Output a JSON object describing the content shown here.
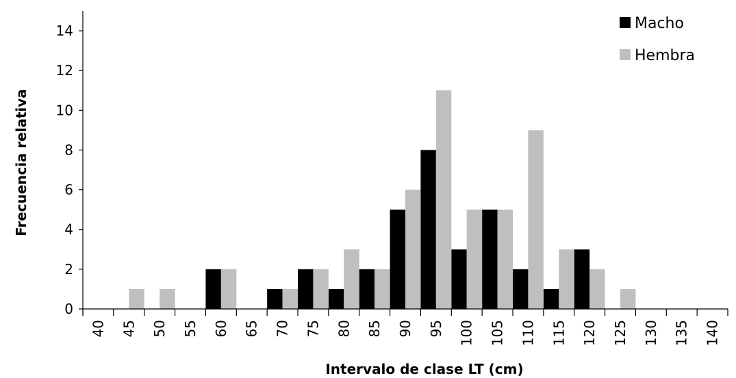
{
  "chart_data": {
    "type": "bar",
    "xlabel": "Intervalo de clase LT (cm)",
    "ylabel": "Frecuencia relativa",
    "ylim": [
      0,
      15
    ],
    "yticks": [
      0,
      2,
      4,
      6,
      8,
      10,
      12,
      14
    ],
    "categories": [
      "40",
      "45",
      "50",
      "55",
      "60",
      "65",
      "70",
      "75",
      "80",
      "85",
      "90",
      "95",
      "100",
      "105",
      "110",
      "115",
      "120",
      "125",
      "130",
      "135",
      "140"
    ],
    "series": [
      {
        "name": "Macho",
        "color": "#000000",
        "values": [
          0,
          0,
          0,
          0,
          2,
          0,
          1,
          2,
          1,
          2,
          5,
          8,
          3,
          5,
          2,
          1,
          3,
          0,
          0,
          0,
          0
        ]
      },
      {
        "name": "Hembra",
        "color": "#bfbfbf",
        "values": [
          0,
          1,
          1,
          0,
          2,
          0,
          1,
          2,
          3,
          2,
          6,
          11,
          5,
          5,
          9,
          3,
          2,
          1,
          0,
          0,
          0
        ]
      }
    ],
    "legend_position": "top-right",
    "grid": false
  }
}
